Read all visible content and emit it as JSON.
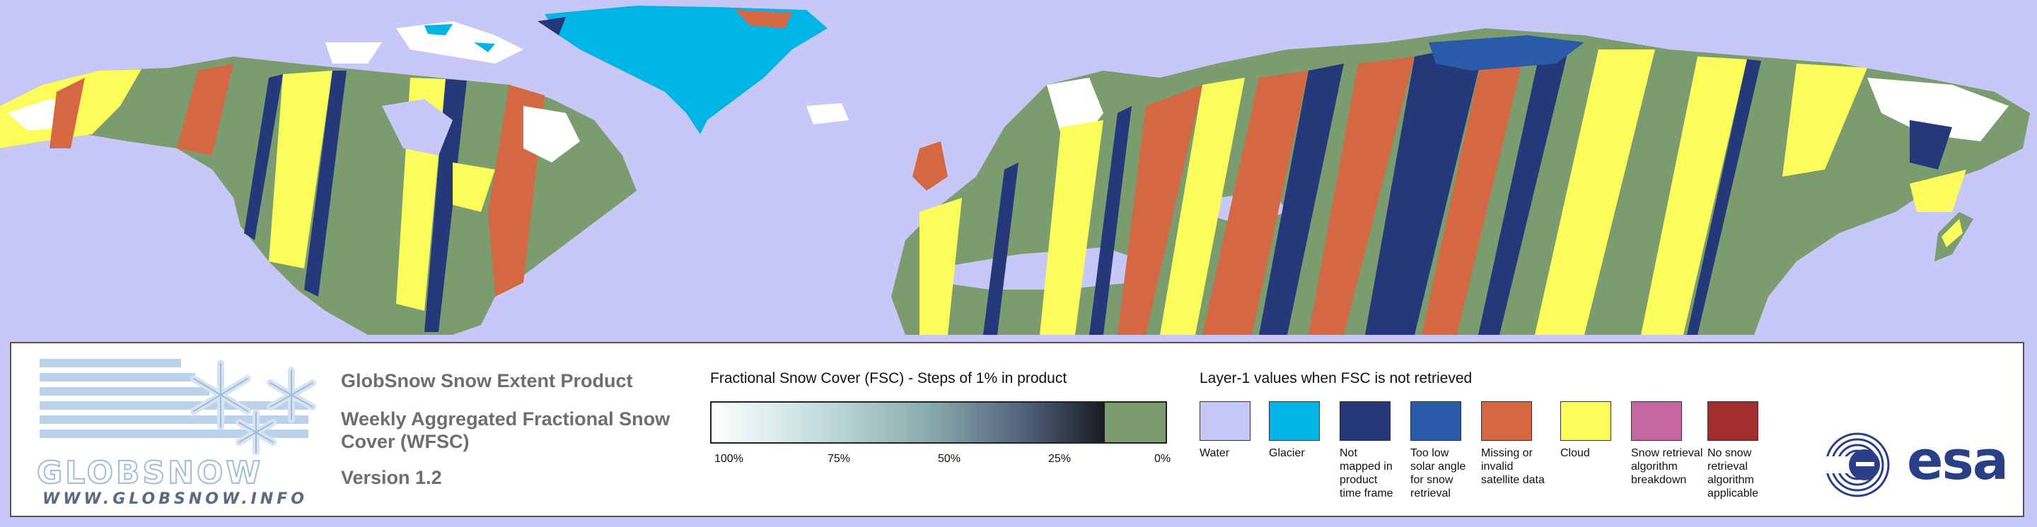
{
  "colors": {
    "water": "#c8c8f8",
    "glacier": "#00b4e6",
    "not_mapped": "#24387a",
    "too_low_solar_angle": "#2a5aa8",
    "missing_invalid": "#d46842",
    "cloud": "#fcfc5a",
    "snow_retrieval_breakdown": "#c466a0",
    "no_snow_retrieval_applicable": "#a02e2e",
    "snow_free": "#7b9c6e",
    "snow_full": "#ffffff"
  },
  "logo": {
    "wordmark": "GLOBSNOW",
    "url": "WWW.GLOBSNOW.INFO"
  },
  "product": {
    "title": "GlobSnow Snow Extent Product",
    "subtitle": "Weekly Aggregated Fractional Snow Cover (WFSC)",
    "version": "Version 1.2"
  },
  "fsc_legend": {
    "title": "Fractional Snow Cover (FSC) - Steps of 1% in product",
    "ticks": [
      "100%",
      "75%",
      "50%",
      "25%",
      "0%"
    ]
  },
  "layer1_legend": {
    "title": "Layer-1 values when FSC is not retrieved",
    "items": [
      {
        "label": "Water",
        "color": "#c8c8f8"
      },
      {
        "label": "Glacier",
        "color": "#00b4e6"
      },
      {
        "label": "Not mapped in product time frame",
        "color": "#24387a"
      },
      {
        "label": "Too low solar angle for snow retrieval",
        "color": "#2a5aa8"
      },
      {
        "label": "Missing or invalid satellite data",
        "color": "#d46842"
      },
      {
        "label": "Cloud",
        "color": "#fcfc5a"
      },
      {
        "label": "Snow retrieval algorithm breakdown",
        "color": "#c466a0"
      },
      {
        "label": "No snow retrieval algorithm applicable",
        "color": "#a02e2e"
      }
    ]
  },
  "esa_logo": {
    "wordmark": "esa"
  }
}
